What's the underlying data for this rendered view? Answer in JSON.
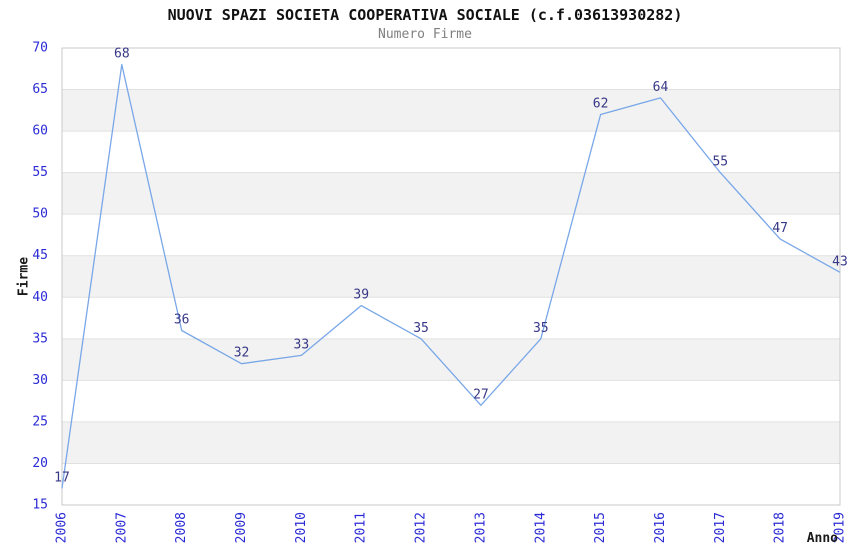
{
  "header": {
    "title": "NUOVI SPAZI SOCIETA COOPERATIVA SOCIALE (c.f.03613930282)",
    "subtitle": "Numero Firme"
  },
  "chart_data": {
    "type": "line",
    "title": "NUOVI SPAZI SOCIETA COOPERATIVA SOCIALE (c.f.03613930282)",
    "subtitle": "Numero Firme",
    "xlabel": "Anno",
    "ylabel": "Firme",
    "categories": [
      "2006",
      "2007",
      "2008",
      "2009",
      "2010",
      "2011",
      "2012",
      "2013",
      "2014",
      "2015",
      "2016",
      "2017",
      "2018",
      "2019"
    ],
    "series": [
      {
        "name": "Numero Firme",
        "values": [
          17,
          68,
          36,
          32,
          33,
          39,
          35,
          27,
          35,
          62,
          64,
          55,
          47,
          43
        ]
      }
    ],
    "ylim": [
      15,
      70
    ],
    "ytick_step": 5,
    "yticks": [
      15,
      20,
      25,
      30,
      35,
      40,
      45,
      50,
      55,
      60,
      65,
      70
    ],
    "grid": "alternating-horizontal-bands",
    "legend_position": "none",
    "point_labels": true,
    "x_tick_rotation_deg": -90,
    "colors": {
      "line": "#79a7e8",
      "tick_labels": "#2b2bd5",
      "point_labels": "#373787",
      "band": "#f2f2f2",
      "gridline": "#e0e0e0",
      "plot_border": "#c9c9c9",
      "title": "#111111",
      "subtitle": "#808080",
      "axis_titles": "#1a1a1a",
      "background": "#ffffff"
    }
  }
}
